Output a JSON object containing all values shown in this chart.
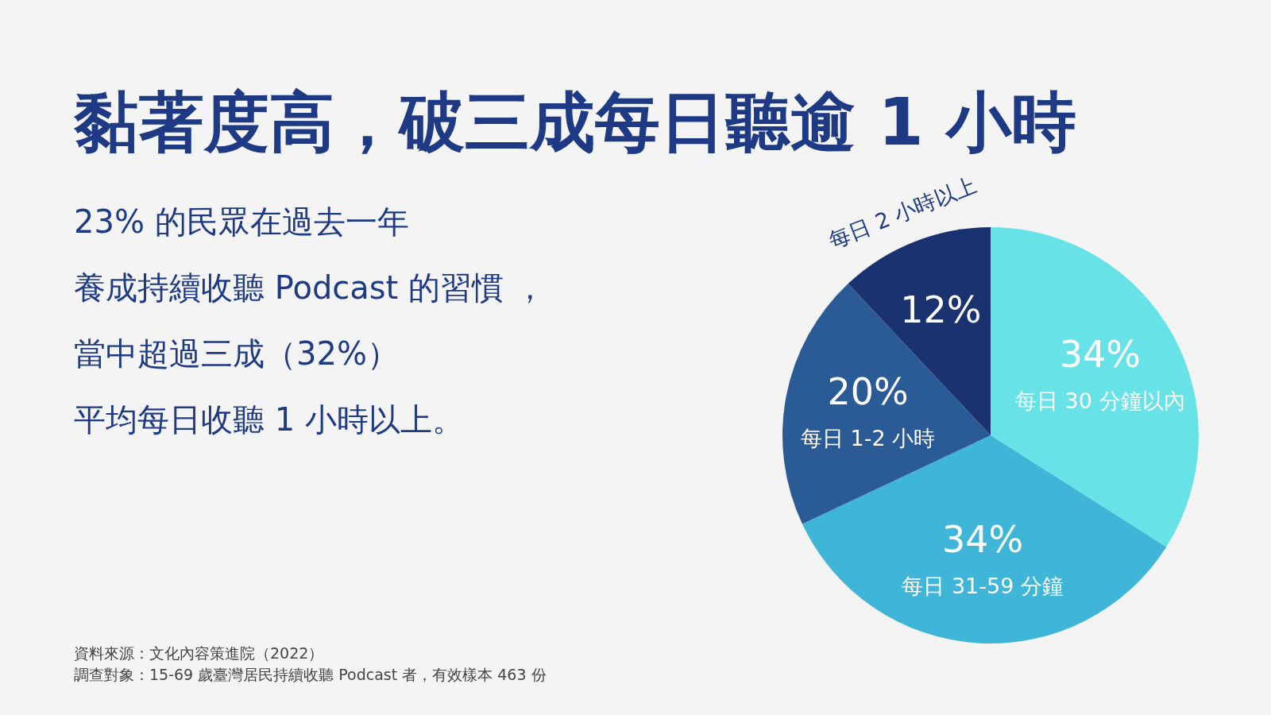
{
  "chart_data": {
    "type": "pie",
    "title": "黏著度高，破三成每日聽逾 1 小時",
    "categories": [
      "每日 30 分鐘以內",
      "每日 31-59 分鐘",
      "每日 1-2 小時",
      "每日 2 小時以上"
    ],
    "values": [
      34,
      34,
      20,
      12
    ],
    "value_labels": [
      "34%",
      "34%",
      "20%",
      "12%"
    ],
    "colors": [
      "#67e3e8",
      "#3fb6d8",
      "#2b5b96",
      "#1b3270"
    ],
    "annotations": [
      "23% 的民眾在過去一年",
      "養成持續收聽 Podcast 的習慣 ，",
      "當中超過三成（32%）",
      "平均每日收聽 1 小時以上。",
      "資料來源：文化內容策進院（2022）",
      "調查對象：15-69 歲臺灣居民持續收聽 Podcast 者，有效樣本 463 份"
    ]
  }
}
